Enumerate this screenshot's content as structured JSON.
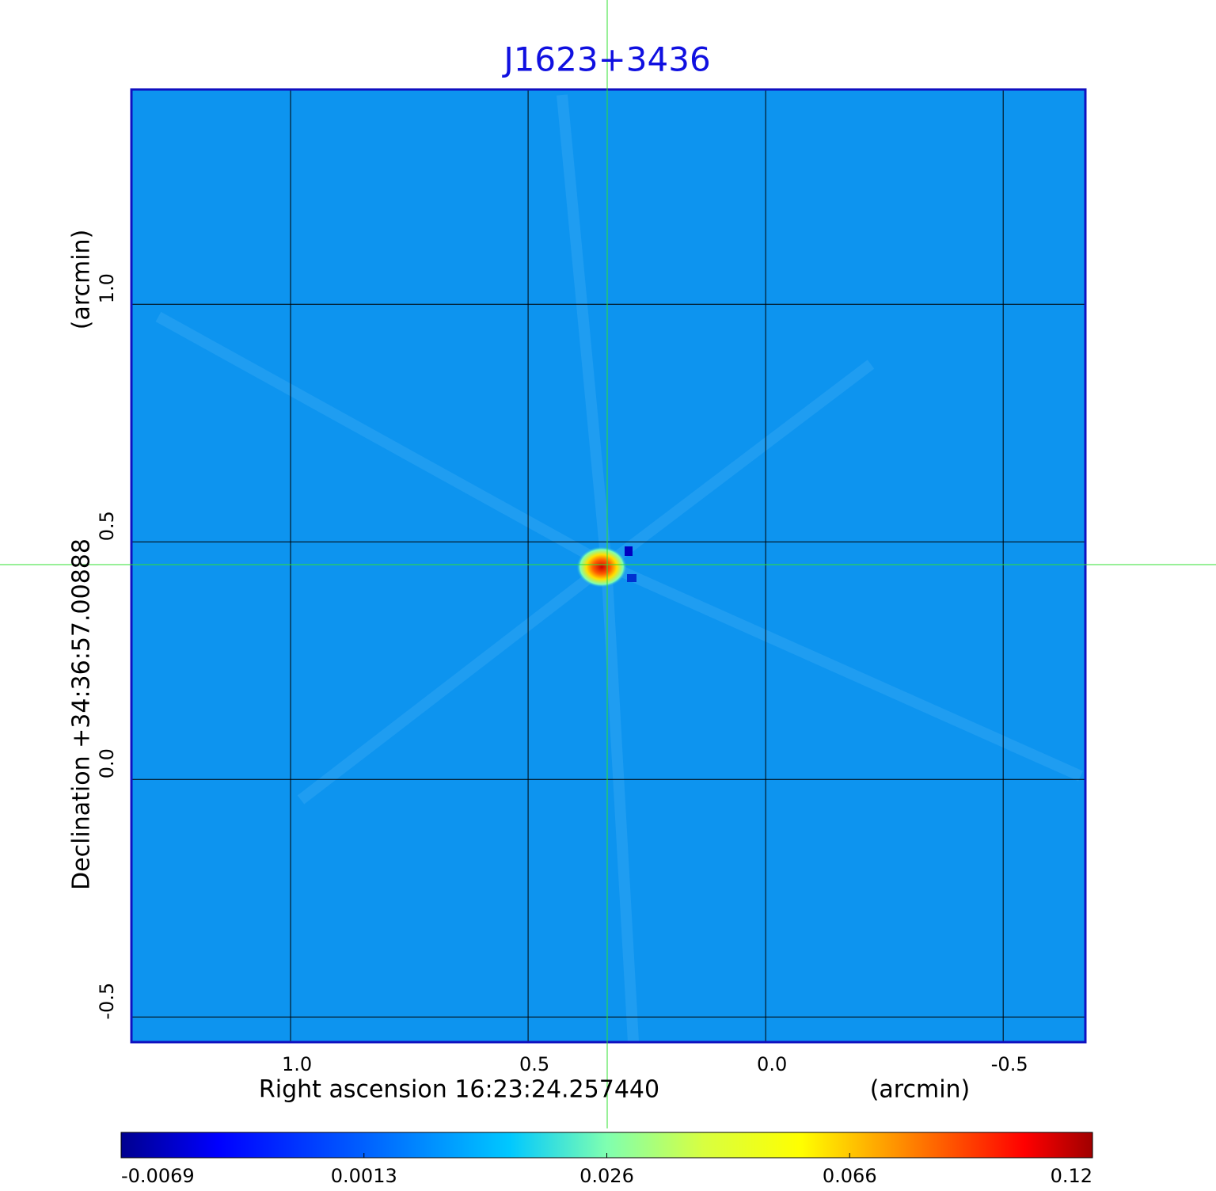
{
  "chart_data": {
    "type": "image",
    "title": "J1623+3436",
    "x_label": "Right ascension  16:23:24.257440",
    "x_unit": "(arcmin)",
    "y_label": "Declination  +34:36:57.00888",
    "y_unit": "(arcmin)",
    "xlim": [
      1.335,
      -0.673
    ],
    "ylim": [
      -0.553,
      1.452
    ],
    "xticks": [
      {
        "value": 1,
        "label": "1.0"
      },
      0.5,
      {
        "value": 0,
        "label": "0.0"
      },
      -0.5
    ],
    "yticks": [
      {
        "value": 1,
        "label": "1.0"
      },
      0.5,
      {
        "value": 0,
        "label": "0.0"
      },
      -0.5
    ],
    "grid": true,
    "colorbar_ticks": [
      -0.0069,
      0.0013,
      0.026,
      0.066,
      0.12
    ]
  }
}
